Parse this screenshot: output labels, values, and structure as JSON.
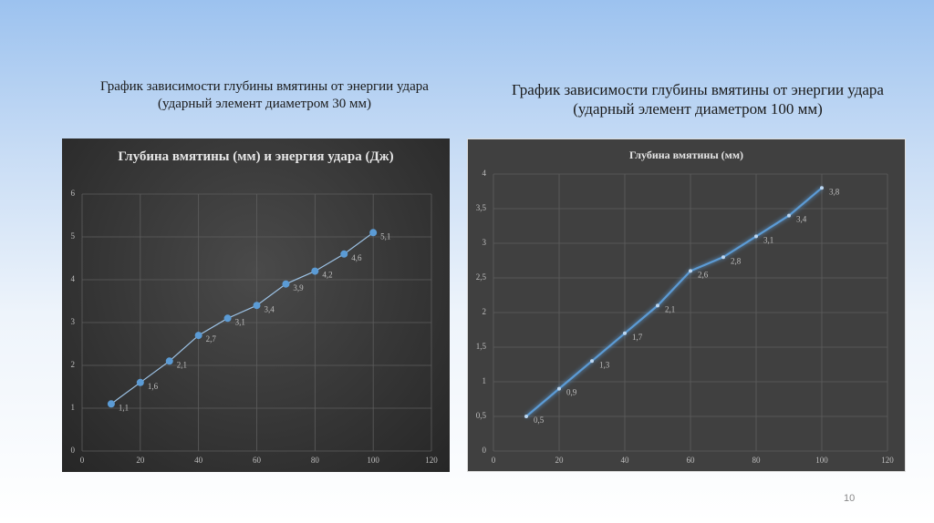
{
  "captions": [
    "График зависимости глубины вмятины от энергии удара (ударный элемент диаметром 30 мм)",
    "График зависимости глубины вмятины от энергии удара (ударный элемент диаметром 100 мм)"
  ],
  "page_number": "10",
  "chart_data": [
    {
      "type": "line",
      "title": "Глубина вмятины (мм) и энергия удара (Дж)",
      "x": [
        10,
        20,
        30,
        40,
        50,
        60,
        70,
        80,
        90,
        100
      ],
      "series": [
        {
          "name": "Глубина вмятины",
          "color": "#5b9bd5",
          "values": [
            1.1,
            1.6,
            2.1,
            2.7,
            3.1,
            3.4,
            3.9,
            4.2,
            4.6,
            5.1
          ],
          "value_labels": [
            "1,1",
            "1,6",
            "2,1",
            "2,7",
            "3,1",
            "3,4",
            "3,9",
            "4,2",
            "4,6",
            "5,1"
          ]
        }
      ],
      "xlim": [
        0,
        120
      ],
      "xticks": [
        0,
        20,
        40,
        60,
        80,
        100,
        120
      ],
      "ylim": [
        0,
        6
      ],
      "yticks": [
        0,
        1,
        2,
        3,
        4,
        5,
        6
      ],
      "grid": true
    },
    {
      "type": "line",
      "title": "Глубина вмятины (мм)",
      "x": [
        10,
        20,
        30,
        40,
        50,
        60,
        70,
        80,
        90,
        100
      ],
      "series": [
        {
          "name": "Глубина вмятины",
          "color": "#5b9bd5",
          "values": [
            0.5,
            0.9,
            1.3,
            1.7,
            2.1,
            2.6,
            2.8,
            3.1,
            3.4,
            3.8
          ],
          "value_labels": [
            "0,5",
            "0,9",
            "1,3",
            "1,7",
            "2,1",
            "2,6",
            "2,8",
            "3,1",
            "3,4",
            "3,8"
          ]
        }
      ],
      "xlim": [
        0,
        120
      ],
      "xticks": [
        0,
        20,
        40,
        60,
        80,
        100,
        120
      ],
      "ylim": [
        0,
        4
      ],
      "yticks": [
        0,
        {
          "value": 0.5,
          "label": "0,5"
        },
        1,
        {
          "value": 1.5,
          "label": "1,5"
        },
        2,
        {
          "value": 2.5,
          "label": "2,5"
        },
        3,
        {
          "value": 3.5,
          "label": "3,5"
        },
        4
      ],
      "grid": true
    }
  ]
}
